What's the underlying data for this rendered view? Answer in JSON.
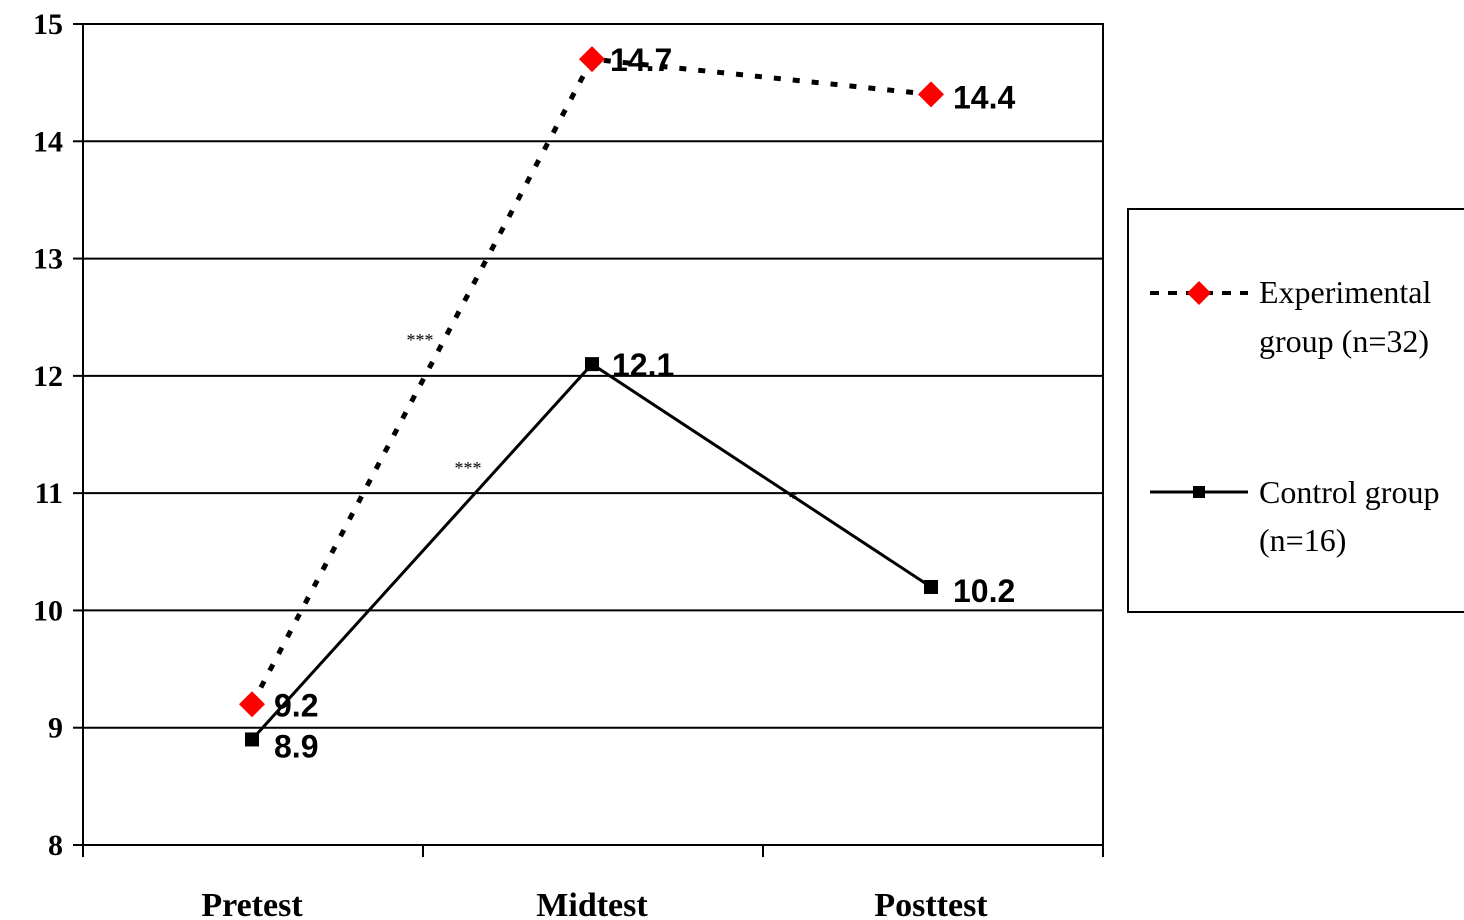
{
  "chart_data": {
    "type": "line",
    "categories": [
      "Pretest",
      "Midtest",
      "Posttest"
    ],
    "ylim": [
      8,
      15
    ],
    "yticks": [
      8,
      9,
      10,
      11,
      12,
      13,
      14,
      15
    ],
    "grid": true,
    "legend_position": "right",
    "series": [
      {
        "name_lines": [
          "Experimental",
          "group (n=32)"
        ],
        "values": [
          9.2,
          14.7,
          14.4
        ],
        "labels": [
          "9.2",
          "14.7",
          "14.4"
        ],
        "color": "#ff0000",
        "line_style": "dotted",
        "marker": "diamond"
      },
      {
        "name_lines": [
          "Control group",
          "(n=16)"
        ],
        "values": [
          8.9,
          12.1,
          10.2
        ],
        "labels": [
          "8.9",
          "12.1",
          "10.2"
        ],
        "color": "#000000",
        "line_style": "solid",
        "marker": "square"
      }
    ],
    "annotations": [
      {
        "text": "***",
        "series": 0,
        "segment": 0
      },
      {
        "text": "***",
        "series": 1,
        "segment": 0
      },
      {
        "text": "*",
        "series": 1,
        "segment": 1
      }
    ]
  }
}
